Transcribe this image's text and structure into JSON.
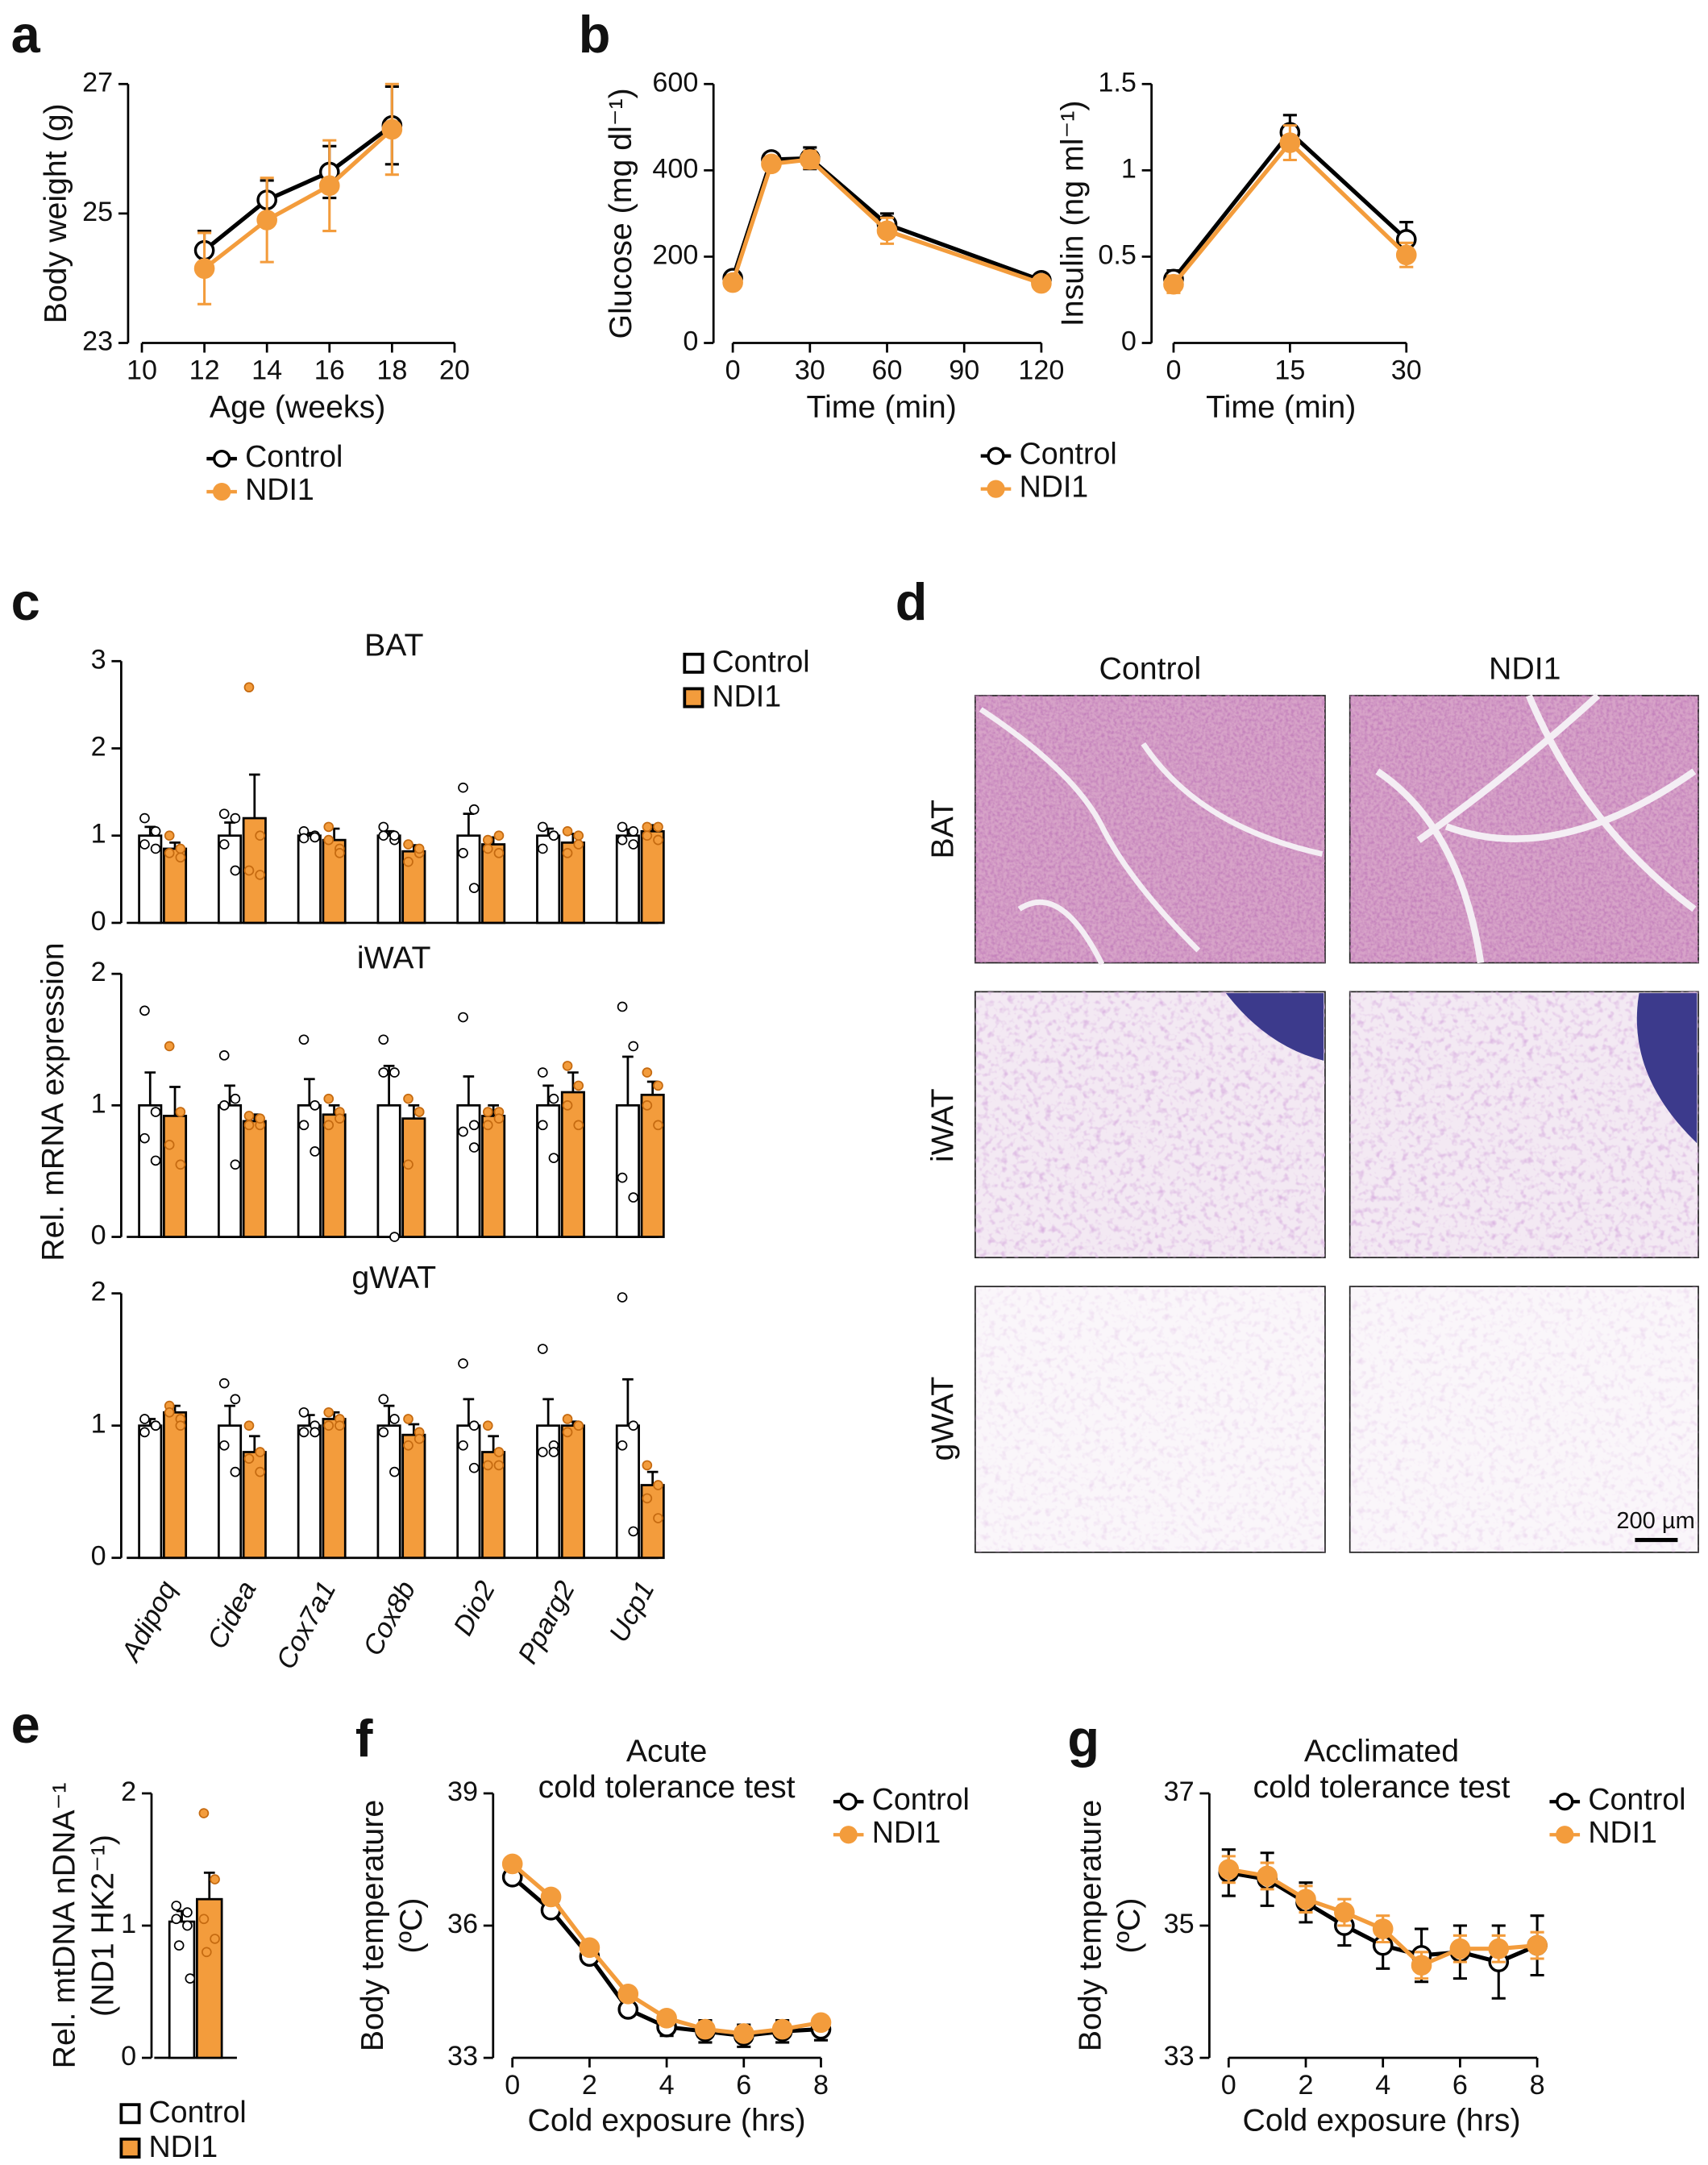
{
  "chart_data": [
    {
      "type": "line",
      "panel": "a",
      "x_label": "Age (weeks)",
      "y_label": [
        "Body weight (g)"
      ],
      "x": [
        12,
        14,
        16,
        18
      ],
      "xlim": [
        10,
        20
      ],
      "xticks": [
        10,
        12,
        14,
        16,
        18,
        20
      ],
      "ylim": [
        23,
        27
      ],
      "yticks": [
        23,
        25,
        27
      ],
      "series": [
        {
          "name": "Control",
          "color": "#000000",
          "marker_fill": "#ffffff",
          "values": [
            24.43,
            25.21,
            25.64,
            26.36
          ],
          "errors": [
            0.3,
            0.3,
            0.4,
            0.6
          ]
        },
        {
          "name": "NDI1",
          "color": "#f39c3c",
          "marker_fill": "#f39c3c",
          "values": [
            24.15,
            24.9,
            25.43,
            26.3
          ],
          "errors": [
            0.55,
            0.65,
            0.7,
            0.7
          ]
        }
      ]
    },
    {
      "type": "line",
      "panel": "b",
      "x_label": "Time (min)",
      "y_label": [
        "Glucose (mg dl⁻¹)"
      ],
      "x": [
        0,
        15,
        30,
        60,
        120
      ],
      "xlim": [
        0,
        120
      ],
      "xticks": [
        0,
        30,
        60,
        90,
        120
      ],
      "ylim": [
        0,
        600
      ],
      "yticks": [
        0,
        200,
        400,
        600
      ],
      "series": [
        {
          "color": "#000000",
          "marker_fill": "#ffffff",
          "values": [
            150,
            425,
            428,
            275,
            145
          ],
          "errors": [
            15,
            10,
            25,
            25,
            10
          ]
        },
        {
          "color": "#f39c3c",
          "marker_fill": "#f39c3c",
          "values": [
            140,
            415,
            425,
            260,
            138
          ],
          "errors": [
            12,
            12,
            20,
            30,
            8
          ]
        }
      ]
    },
    {
      "type": "line",
      "x_label": "Time (min)",
      "y_label": [
        "Insulin (ng ml⁻¹)"
      ],
      "x": [
        0,
        15,
        30
      ],
      "xlim": [
        0,
        30
      ],
      "xticks": [
        0,
        15,
        30
      ],
      "ylim": [
        0,
        1.5
      ],
      "yticks": [
        0,
        0.5,
        1,
        1.5
      ],
      "series": [
        {
          "name": "Control",
          "color": "#000000",
          "marker_fill": "#ffffff",
          "values": [
            0.37,
            1.22,
            0.6
          ],
          "errors": [
            0.05,
            0.1,
            0.1
          ]
        },
        {
          "name": "NDI1",
          "color": "#f39c3c",
          "marker_fill": "#f39c3c",
          "values": [
            0.34,
            1.16,
            0.51
          ],
          "errors": [
            0.05,
            0.1,
            0.07
          ]
        }
      ]
    },
    {
      "type": "bar",
      "panel": "c",
      "y_label": [
        "Rel. mRNA expression"
      ],
      "categories": [
        "Adipoq",
        "Cidea",
        "Cox7a1",
        "Cox8b",
        "Dio2",
        "Pparg2",
        "Ucp1"
      ],
      "series": [
        {
          "name": "Control",
          "color": "#ffffff",
          "edge": "#000000"
        },
        {
          "name": "NDI1",
          "color": "#f39c3c",
          "edge": "#000000"
        }
      ],
      "panels": [
        {
          "title": "BAT",
          "ylim": [
            0,
            3
          ],
          "yticks": [
            0,
            1,
            2,
            3
          ],
          "data": [
            {
              "values": [
                1,
                1,
                1,
                1,
                1,
                1,
                1
              ],
              "errors": [
                0.1,
                0.15,
                0.03,
                0.05,
                0.25,
                0.08,
                0.07
              ],
              "points": [
                [
                  1.2,
                  1.05,
                  0.9,
                  0.85
                ],
                [
                  1.25,
                  1.2,
                  0.9,
                  0.6
                ],
                [
                  1.05,
                  1.0,
                  0.97,
                  0.98
                ],
                [
                  1.1,
                  0.95,
                  1.0,
                  1.0
                ],
                [
                  1.55,
                  1.3,
                  0.8,
                  0.4
                ],
                [
                  1.1,
                  1.0,
                  0.85,
                  1.0
                ],
                [
                  1.1,
                  0.9,
                  0.95,
                  1.05
                ]
              ]
            },
            {
              "values": [
                0.85,
                1.2,
                0.95,
                0.82,
                0.9,
                0.92,
                1.05
              ],
              "errors": [
                0.07,
                0.5,
                0.13,
                0.07,
                0.08,
                0.1,
                0.07
              ],
              "points": [
                [
                  1.0,
                  0.75,
                  0.8,
                  0.85
                ],
                [
                  2.7,
                  1.0,
                  0.6,
                  0.55
                ],
                [
                  1.1,
                  0.85,
                  0.95,
                  0.8
                ],
                [
                  0.9,
                  0.8,
                  0.7,
                  0.85
                ],
                [
                  0.85,
                  1.0,
                  0.95,
                  0.8
                ],
                [
                  1.05,
                  0.9,
                  0.8,
                  1.0
                ],
                [
                  1.1,
                  0.95,
                  1.0,
                  1.1
                ]
              ]
            }
          ]
        },
        {
          "title": "iWAT",
          "ylim": [
            0,
            2
          ],
          "yticks": [
            0,
            1,
            2
          ],
          "data": [
            {
              "values": [
                1,
                1,
                1,
                1,
                1,
                1,
                1
              ],
              "errors": [
                0.25,
                0.15,
                0.2,
                0.3,
                0.22,
                0.15,
                0.37
              ],
              "points": [
                [
                  1.72,
                  0.95,
                  0.75,
                  0.58
                ],
                [
                  1.38,
                  1.05,
                  1.0,
                  0.55
                ],
                [
                  1.5,
                  1.0,
                  0.85,
                  0.65
                ],
                [
                  1.5,
                  1.25,
                  1.25,
                  0.0
                ],
                [
                  1.67,
                  0.85,
                  0.8,
                  0.68
                ],
                [
                  1.25,
                  1.05,
                  0.85,
                  0.6
                ],
                [
                  1.75,
                  1.45,
                  0.45,
                  0.3
                ]
              ]
            },
            {
              "values": [
                0.92,
                0.88,
                0.93,
                0.9,
                0.92,
                1.1,
                1.08
              ],
              "errors": [
                0.22,
                0.05,
                0.07,
                0.1,
                0.08,
                0.15,
                0.1
              ],
              "points": [
                [
                  1.45,
                  0.95,
                  0.7,
                  0.55
                ],
                [
                  0.92,
                  0.85,
                  0.85,
                  0.9
                ],
                [
                  1.05,
                  0.95,
                  0.85,
                  0.9
                ],
                [
                  1.05,
                  0.95,
                  0.55,
                  0.95
                ],
                [
                  0.95,
                  0.95,
                  0.85,
                  0.9
                ],
                [
                  1.3,
                  1.15,
                  1.0,
                  0.85
                ],
                [
                  1.25,
                  1.15,
                  1.0,
                  0.85
                ]
              ]
            }
          ]
        },
        {
          "title": "gWAT",
          "ylim": [
            0,
            2
          ],
          "yticks": [
            0,
            1,
            2
          ],
          "data": [
            {
              "values": [
                1,
                1,
                1,
                1,
                1,
                1,
                1
              ],
              "errors": [
                0.05,
                0.15,
                0.08,
                0.15,
                0.2,
                0.2,
                0.35
              ],
              "points": [
                [
                  1.05,
                  1.0,
                  0.95,
                  1.0
                ],
                [
                  1.32,
                  1.2,
                  0.85,
                  0.65
                ],
                [
                  1.1,
                  1.0,
                  0.95,
                  0.95
                ],
                [
                  1.2,
                  1.05,
                  0.95,
                  0.65
                ],
                [
                  1.47,
                  1.0,
                  0.85,
                  0.68
                ],
                [
                  1.58,
                  0.85,
                  0.8,
                  0.8
                ],
                [
                  1.97,
                  1.0,
                  0.85,
                  0.2
                ]
              ]
            },
            {
              "values": [
                1.1,
                0.8,
                1.05,
                0.93,
                0.8,
                1.0,
                0.55
              ],
              "errors": [
                0.05,
                0.12,
                0.05,
                0.08,
                0.12,
                0.03,
                0.1
              ],
              "points": [
                [
                  1.15,
                  1.05,
                  1.1,
                  1.0
                ],
                [
                  1.0,
                  0.8,
                  0.75,
                  0.65
                ],
                [
                  1.1,
                  1.05,
                  1.0,
                  1.0
                ],
                [
                  1.05,
                  0.95,
                  0.85,
                  0.9
                ],
                [
                  1.0,
                  0.8,
                  0.7,
                  0.7
                ],
                [
                  1.05,
                  1.0,
                  0.95,
                  1.0
                ],
                [
                  0.7,
                  0.55,
                  0.45,
                  0.3
                ]
              ]
            }
          ]
        }
      ]
    },
    {
      "type": "bar",
      "panel": "e",
      "y_label": [
        "Rel. mtDNA nDNA⁻¹",
        "(ND1 HK2⁻¹)"
      ],
      "ylim": [
        0,
        2
      ],
      "yticks": [
        0,
        1,
        2
      ],
      "series": [
        {
          "name": "Control",
          "color": "#ffffff",
          "edge": "#000000",
          "values": [
            1.03
          ],
          "errors": [
            0.08
          ],
          "points": [
            [
              1.15,
              1.1,
              1.05,
              1.0,
              0.85,
              0.6
            ]
          ]
        },
        {
          "name": "NDI1",
          "color": "#f39c3c",
          "edge": "#000000",
          "values": [
            1.2
          ],
          "errors": [
            0.2
          ],
          "points": [
            [
              1.85,
              1.35,
              1.05,
              0.9,
              0.8
            ]
          ]
        }
      ]
    },
    {
      "type": "line",
      "panel": "f",
      "title": [
        "Acute",
        "cold tolerance test"
      ],
      "x_label": "Cold exposure (hrs)",
      "y_label": [
        "Body temperature",
        "(ºC)"
      ],
      "x": [
        0,
        1,
        2,
        3,
        4,
        5,
        6,
        7,
        8
      ],
      "xlim": [
        0,
        8
      ],
      "xticks": [
        0,
        2,
        4,
        6,
        8
      ],
      "ylim": [
        33,
        39
      ],
      "yticks": [
        33,
        36,
        39
      ],
      "series": [
        {
          "name": "Control",
          "color": "#000000",
          "marker_fill": "#ffffff",
          "values": [
            37.1,
            36.35,
            35.3,
            34.1,
            33.7,
            33.6,
            33.5,
            33.6,
            33.65
          ],
          "errors": [
            0.1,
            0.1,
            0.15,
            0.15,
            0.2,
            0.25,
            0.25,
            0.25,
            0.25
          ]
        },
        {
          "name": "NDI1",
          "color": "#f39c3c",
          "marker_fill": "#f39c3c",
          "values": [
            37.4,
            36.65,
            35.5,
            34.45,
            33.9,
            33.65,
            33.55,
            33.65,
            33.8
          ],
          "errors": [
            0.1,
            0.1,
            0.1,
            0.1,
            0.1,
            0.1,
            0.1,
            0.1,
            0.1
          ]
        }
      ]
    },
    {
      "type": "line",
      "panel": "g",
      "title": [
        "Acclimated",
        "cold tolerance test"
      ],
      "x_label": "Cold exposure (hrs)",
      "y_label": [
        "Body temperature",
        "(ºC)"
      ],
      "x": [
        0,
        1,
        2,
        3,
        4,
        5,
        6,
        7,
        8
      ],
      "xlim": [
        0,
        8
      ],
      "xticks": [
        0,
        2,
        4,
        6,
        8
      ],
      "ylim": [
        33,
        37
      ],
      "yticks": [
        33,
        35,
        37
      ],
      "series": [
        {
          "name": "Control",
          "color": "#000000",
          "marker_fill": "#ffffff",
          "values": [
            35.8,
            35.7,
            35.35,
            35.0,
            34.7,
            34.55,
            34.6,
            34.45,
            34.7
          ],
          "errors": [
            0.35,
            0.4,
            0.3,
            0.3,
            0.35,
            0.4,
            0.4,
            0.55,
            0.45
          ]
        },
        {
          "name": "NDI1",
          "color": "#f39c3c",
          "marker_fill": "#f39c3c",
          "values": [
            35.85,
            35.75,
            35.4,
            35.2,
            34.95,
            34.4,
            34.65,
            34.65,
            34.7
          ],
          "errors": [
            0.2,
            0.2,
            0.2,
            0.2,
            0.2,
            0.2,
            0.2,
            0.2,
            0.2
          ]
        }
      ]
    }
  ],
  "histology": {
    "panel": "d",
    "columns": [
      "Control",
      "NDI1"
    ],
    "rows": [
      "BAT",
      "iWAT",
      "gWAT"
    ],
    "scale_bar": "200 µm"
  }
}
